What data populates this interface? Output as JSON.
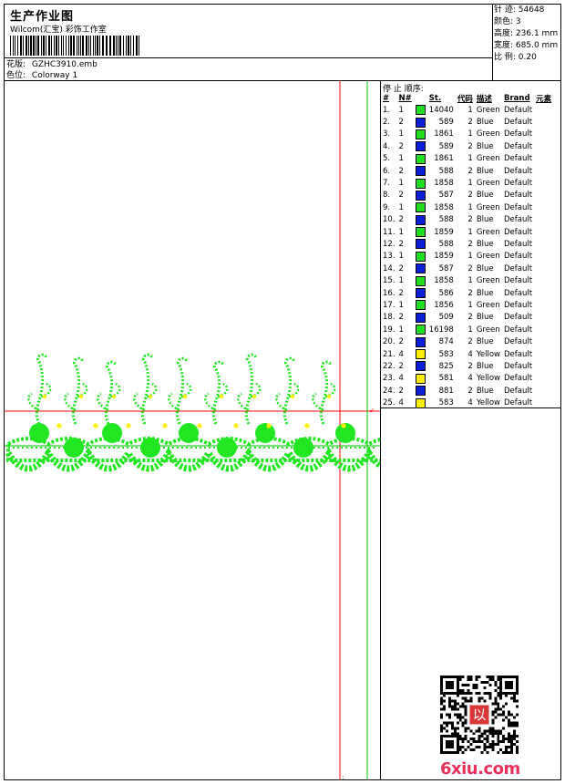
{
  "header": {
    "title": "生产作业图",
    "studio": "Wilcom(汇宝) 彩饰工作室",
    "pattern_label": "花版:",
    "pattern_value": "GZHC3910.emb",
    "colorway_label": "色位:",
    "colorway_value": "Colorway 1"
  },
  "stats": {
    "stitches_label": "针 迹:",
    "stitches_value": "54648",
    "colors_label": "颜色:",
    "colors_value": "3",
    "height_label": "高度:",
    "height_value": "236.1 mm",
    "width_label": "宽度:",
    "width_value": "685.0 mm",
    "scale_label": "比 例:",
    "scale_value": "0.20"
  },
  "stop_sequence": {
    "title": "停 止 顺序:",
    "headers": [
      "#",
      "N#",
      "St.",
      "代码",
      "描述",
      "Brand",
      "元素"
    ],
    "colors": {
      "Green": "#22dd22",
      "Blue": "#0a1fd6",
      "Yellow": "#ffee00"
    },
    "rows": [
      {
        "n": "1.",
        "needle": "1",
        "st": "14040",
        "code": "1",
        "desc": "Green",
        "brand": "Default"
      },
      {
        "n": "2.",
        "needle": "2",
        "st": "589",
        "code": "2",
        "desc": "Blue",
        "brand": "Default"
      },
      {
        "n": "3.",
        "needle": "1",
        "st": "1861",
        "code": "1",
        "desc": "Green",
        "brand": "Default"
      },
      {
        "n": "4.",
        "needle": "2",
        "st": "589",
        "code": "2",
        "desc": "Blue",
        "brand": "Default"
      },
      {
        "n": "5.",
        "needle": "1",
        "st": "1861",
        "code": "1",
        "desc": "Green",
        "brand": "Default"
      },
      {
        "n": "6.",
        "needle": "2",
        "st": "588",
        "code": "2",
        "desc": "Blue",
        "brand": "Default"
      },
      {
        "n": "7.",
        "needle": "1",
        "st": "1858",
        "code": "1",
        "desc": "Green",
        "brand": "Default"
      },
      {
        "n": "8.",
        "needle": "2",
        "st": "587",
        "code": "2",
        "desc": "Blue",
        "brand": "Default"
      },
      {
        "n": "9.",
        "needle": "1",
        "st": "1858",
        "code": "1",
        "desc": "Green",
        "brand": "Default"
      },
      {
        "n": "10.",
        "needle": "2",
        "st": "588",
        "code": "2",
        "desc": "Blue",
        "brand": "Default"
      },
      {
        "n": "11.",
        "needle": "1",
        "st": "1859",
        "code": "1",
        "desc": "Green",
        "brand": "Default"
      },
      {
        "n": "12.",
        "needle": "2",
        "st": "588",
        "code": "2",
        "desc": "Blue",
        "brand": "Default"
      },
      {
        "n": "13.",
        "needle": "1",
        "st": "1859",
        "code": "1",
        "desc": "Green",
        "brand": "Default"
      },
      {
        "n": "14.",
        "needle": "2",
        "st": "587",
        "code": "2",
        "desc": "Blue",
        "brand": "Default"
      },
      {
        "n": "15.",
        "needle": "1",
        "st": "1858",
        "code": "1",
        "desc": "Green",
        "brand": "Default"
      },
      {
        "n": "16.",
        "needle": "2",
        "st": "586",
        "code": "2",
        "desc": "Blue",
        "brand": "Default"
      },
      {
        "n": "17.",
        "needle": "1",
        "st": "1856",
        "code": "1",
        "desc": "Green",
        "brand": "Default"
      },
      {
        "n": "18.",
        "needle": "2",
        "st": "509",
        "code": "2",
        "desc": "Blue",
        "brand": "Default"
      },
      {
        "n": "19.",
        "needle": "1",
        "st": "16198",
        "code": "1",
        "desc": "Green",
        "brand": "Default"
      },
      {
        "n": "20.",
        "needle": "2",
        "st": "874",
        "code": "2",
        "desc": "Blue",
        "brand": "Default"
      },
      {
        "n": "21.",
        "needle": "4",
        "st": "583",
        "code": "4",
        "desc": "Yellow",
        "brand": "Default"
      },
      {
        "n": "22.",
        "needle": "2",
        "st": "825",
        "code": "2",
        "desc": "Blue",
        "brand": "Default"
      },
      {
        "n": "23.",
        "needle": "4",
        "st": "581",
        "code": "4",
        "desc": "Yellow",
        "brand": "Default"
      },
      {
        "n": "24.",
        "needle": "2",
        "st": "881",
        "code": "2",
        "desc": "Blue",
        "brand": "Default"
      },
      {
        "n": "25.",
        "needle": "4",
        "st": "583",
        "code": "4",
        "desc": "Yellow",
        "brand": "Default"
      }
    ]
  },
  "guides": {
    "red": "#ff0000",
    "green": "#00c000"
  },
  "watermark": {
    "site": "6xiu.com",
    "seal_text": "以"
  }
}
